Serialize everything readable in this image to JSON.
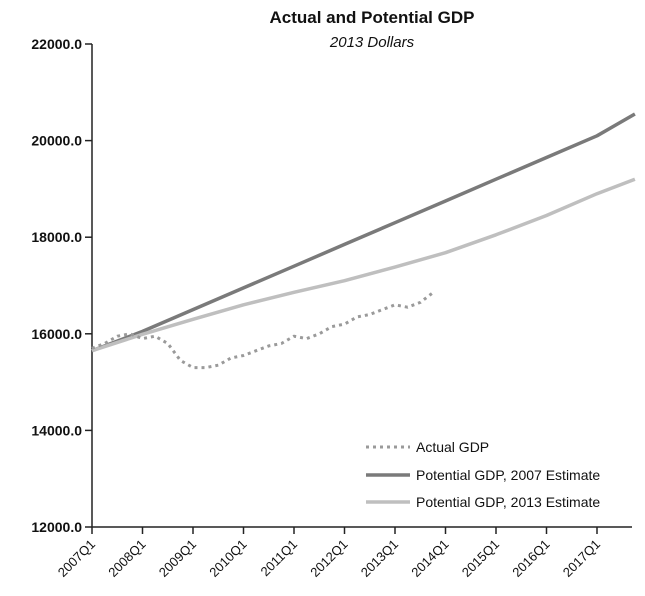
{
  "chart_data": {
    "type": "line",
    "title": "Actual and Potential GDP",
    "subtitle": "2013 Dollars",
    "xlabel": "",
    "ylabel": "",
    "x_tick_labels": [
      "2007Q1",
      "2008Q1",
      "2009Q1",
      "2010Q1",
      "2011Q1",
      "2012Q1",
      "2013Q1",
      "2014Q1",
      "2015Q1",
      "2016Q1",
      "2017Q1"
    ],
    "y_tick_labels": [
      "12000.0",
      "14000.0",
      "16000.0",
      "18000.0",
      "20000.0",
      "22000.0"
    ],
    "ylim": [
      12000,
      22000
    ],
    "xlim": [
      "2007Q1",
      "2017Q4"
    ],
    "grid": false,
    "legend_position": "bottom-right",
    "colors": {
      "actual": "#9a9a9a",
      "potential_2007": "#7a7a7a",
      "potential_2013": "#bfbfbf"
    },
    "series": [
      {
        "name": "Actual GDP",
        "style": "dotted",
        "x": [
          "2007Q1",
          "2007Q2",
          "2007Q3",
          "2007Q4",
          "2008Q1",
          "2008Q2",
          "2008Q3",
          "2008Q4",
          "2009Q1",
          "2009Q2",
          "2009Q3",
          "2009Q4",
          "2010Q1",
          "2010Q2",
          "2010Q3",
          "2010Q4",
          "2011Q1",
          "2011Q2",
          "2011Q3",
          "2011Q4",
          "2012Q1",
          "2012Q2",
          "2012Q3",
          "2012Q4",
          "2013Q1",
          "2013Q2",
          "2013Q3",
          "2013Q4"
        ],
        "values": [
          15700,
          15800,
          15950,
          16000,
          15900,
          15950,
          15800,
          15450,
          15300,
          15300,
          15350,
          15500,
          15550,
          15650,
          15750,
          15800,
          15950,
          15900,
          16000,
          16150,
          16200,
          16350,
          16400,
          16500,
          16600,
          16550,
          16650,
          16850
        ]
      },
      {
        "name": "Potential GDP, 2007 Estimate",
        "style": "solid",
        "x": [
          "2007Q1",
          "2008Q1",
          "2009Q1",
          "2010Q1",
          "2011Q1",
          "2012Q1",
          "2013Q1",
          "2014Q1",
          "2015Q1",
          "2016Q1",
          "2017Q1",
          "2017Q4"
        ],
        "values": [
          15650,
          16050,
          16500,
          16950,
          17400,
          17850,
          18300,
          18750,
          19200,
          19650,
          20100,
          20550
        ]
      },
      {
        "name": "Potential GDP, 2013 Estimate",
        "style": "solid",
        "x": [
          "2007Q1",
          "2008Q1",
          "2009Q1",
          "2010Q1",
          "2011Q1",
          "2012Q1",
          "2013Q1",
          "2014Q1",
          "2015Q1",
          "2016Q1",
          "2017Q1",
          "2017Q4"
        ],
        "values": [
          15650,
          15990,
          16300,
          16600,
          16860,
          17100,
          17380,
          17680,
          18050,
          18450,
          18900,
          19200
        ]
      }
    ]
  }
}
